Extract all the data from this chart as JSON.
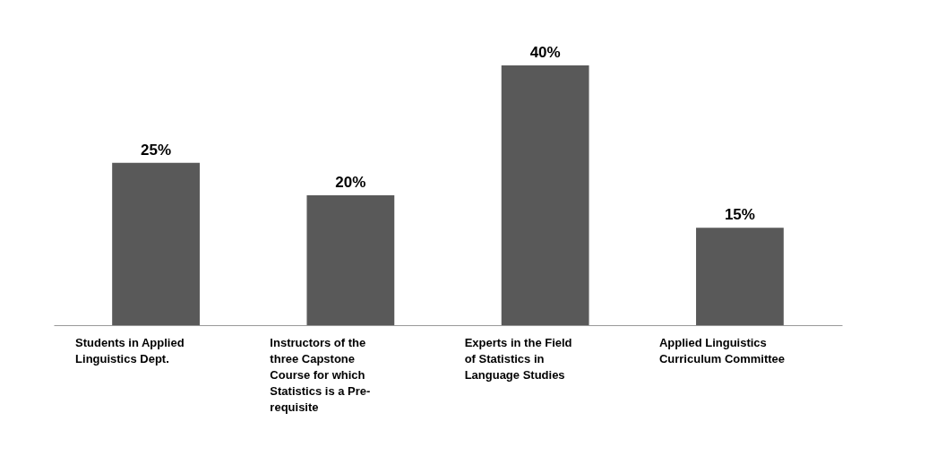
{
  "chart_data": {
    "type": "bar",
    "categories": [
      "Students in Applied Linguistics Dept.",
      "Instructors of the three Capstone Course for which Statistics is a Pre-requisite",
      "Experts in the Field of Statistics in Language Studies",
      "Applied Linguistics Curriculum Committee"
    ],
    "values": [
      25,
      20,
      40,
      15
    ],
    "value_labels": [
      "25%",
      "20%",
      "40%",
      "15%"
    ],
    "color": "#595959"
  }
}
